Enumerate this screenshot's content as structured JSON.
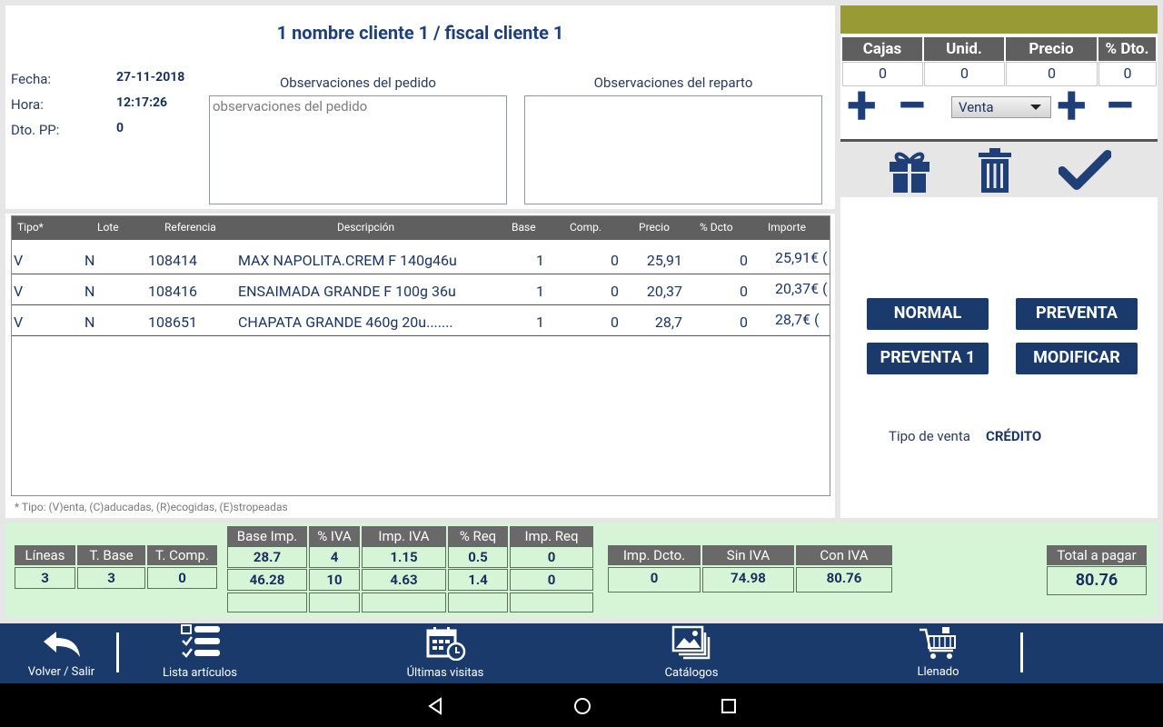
{
  "header": {
    "client_title": "1 nombre cliente 1 / fiscal cliente 1",
    "fecha_label": "Fecha:",
    "fecha_value": "27-11-2018",
    "hora_label": "Hora:",
    "hora_value": "12:17:26",
    "dto_pp_label": "Dto. PP:",
    "dto_pp_value": "0",
    "obs_pedido_title": "Observaciones del pedido",
    "obs_pedido_value": "observaciones del pedido",
    "obs_reparto_title": "Observaciones del reparto",
    "obs_reparto_value": ""
  },
  "lines": {
    "columns": [
      "Tipo*",
      "Lote",
      "Referencia",
      "Descripción",
      "Base",
      "Comp.",
      "Precio",
      "% Dcto",
      "Importe"
    ],
    "rows": [
      {
        "tipo": "V",
        "lote": "N",
        "referencia": "108414",
        "descripcion": "MAX NAPOLITA.CREM F 140g46u",
        "base": "1",
        "comp": "0",
        "precio": "25,91",
        "dcto": "0",
        "importe": "25,91€ ("
      },
      {
        "tipo": "V",
        "lote": "N",
        "referencia": "108416",
        "descripcion": "ENSAIMADA GRANDE F 100g 36u",
        "base": "1",
        "comp": "0",
        "precio": "20,37",
        "dcto": "0",
        "importe": "20,37€ ("
      },
      {
        "tipo": "V",
        "lote": "N",
        "referencia": "108651",
        "descripcion": "CHAPATA GRANDE 460g 20u.......",
        "base": "1",
        "comp": "0",
        "precio": "28,7",
        "dcto": "0",
        "importe": "28,7€ ("
      }
    ],
    "tipo_note": "* Tipo: (V)enta, (C)aducadas, (R)ecogidas, (E)stropeadas"
  },
  "right_panel": {
    "headers": [
      "Cajas",
      "Unid.",
      "Precio",
      "% Dto."
    ],
    "values": [
      "0",
      "0",
      "0",
      "0"
    ],
    "plus_symbol": "+",
    "minus_symbol": "−",
    "venta_select": "Venta",
    "btn_normal": "NORMAL",
    "btn_preventa": "PREVENTA",
    "btn_preventa1": "PREVENTA 1",
    "btn_modificar": "MODIFICAR",
    "tipo_venta_label": "Tipo de venta",
    "tipo_venta_value": "CRÉDITO"
  },
  "totals": {
    "lineas_label": "Líneas",
    "lineas_value": "3",
    "tbase_label": "T. Base",
    "tbase_value": "3",
    "tcomp_label": "T. Comp.",
    "tcomp_value": "0",
    "iva_headers": [
      "Base Imp.",
      "% IVA",
      "Imp. IVA",
      "% Req",
      "Imp. Req"
    ],
    "iva_rows": [
      [
        "28.7",
        "4",
        "1.15",
        "0.5",
        "0"
      ],
      [
        "46.28",
        "10",
        "4.63",
        "1.4",
        "0"
      ],
      [
        "",
        "",
        "",
        "",
        ""
      ]
    ],
    "imp_dcto_label": "Imp. Dcto.",
    "imp_dcto_value": "0",
    "sin_iva_label": "Sin IVA",
    "sin_iva_value": "74.98",
    "con_iva_label": "Con IVA",
    "con_iva_value": "80.76",
    "total_label": "Total a pagar",
    "total_value": "80.76"
  },
  "nav": {
    "volver": "Volver / Salir",
    "lista": "Lista artículos",
    "ultimas": "Últimas visitas",
    "catalogos": "Catálogos",
    "llenado": "Llenado"
  },
  "colors": {
    "primary": "#193a6b",
    "olive_bar": "#979a35",
    "totals_bg": "#d6f5d6",
    "header_gray": "#5f5f5f"
  }
}
